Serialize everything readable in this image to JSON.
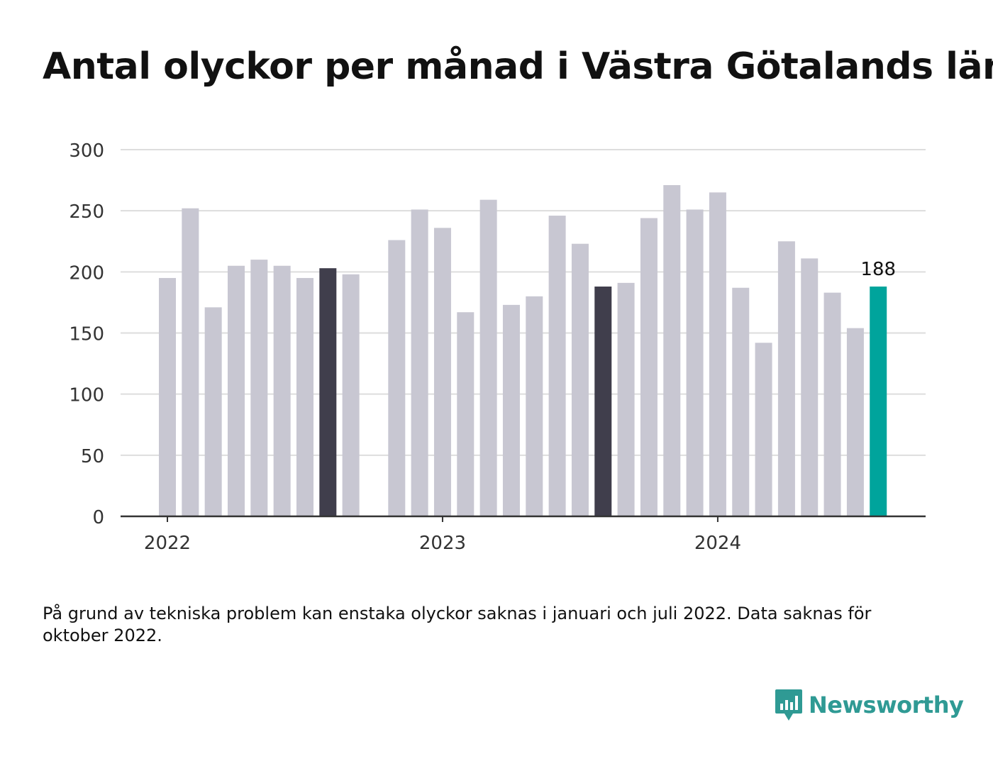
{
  "title": "Antal olyckor per månad i Västra Götalands län",
  "note": "På grund av tekniska problem kan enstaka olyckor saknas i januari och juli 2022. Data saknas för oktober 2022.",
  "brand": {
    "name": "Newsworthy",
    "icon": "newsworthy-logo-icon",
    "color": "#2f9a94"
  },
  "colors": {
    "default": "#c8c7d2",
    "highlight": "#403e4c",
    "latest": "#00a49c",
    "grid": "#dddddd",
    "axis": "#333333"
  },
  "chart_data": {
    "type": "bar",
    "title": "Antal olyckor per månad i Västra Götalands län",
    "xlabel": "",
    "ylabel": "",
    "ylim": [
      0,
      300
    ],
    "yticks": [
      0,
      50,
      100,
      150,
      200,
      250,
      300
    ],
    "grid": true,
    "xtick_labels": [
      {
        "label": "2022",
        "date": "2022-01"
      },
      {
        "label": "2023",
        "date": "2023-01"
      },
      {
        "label": "2024",
        "date": "2024-01"
      }
    ],
    "categories": [
      "2022-01",
      "2022-02",
      "2022-03",
      "2022-04",
      "2022-05",
      "2022-06",
      "2022-07",
      "2022-08",
      "2022-09",
      "2022-10",
      "2022-11",
      "2022-12",
      "2023-01",
      "2023-02",
      "2023-03",
      "2023-04",
      "2023-05",
      "2023-06",
      "2023-07",
      "2023-08",
      "2023-09",
      "2023-10",
      "2023-11",
      "2023-12",
      "2024-01",
      "2024-02",
      "2024-03",
      "2024-04",
      "2024-05",
      "2024-06",
      "2024-07",
      "2024-08"
    ],
    "values": [
      195,
      252,
      171,
      205,
      210,
      205,
      195,
      203,
      198,
      null,
      226,
      251,
      236,
      167,
      259,
      173,
      180,
      246,
      223,
      188,
      191,
      244,
      271,
      251,
      265,
      187,
      142,
      225,
      211,
      183,
      154,
      188
    ],
    "highlighted": [
      "2022-08",
      "2023-08"
    ],
    "latest": "2024-08",
    "annotations": [
      {
        "date": "2024-08",
        "text": "188"
      }
    ]
  }
}
